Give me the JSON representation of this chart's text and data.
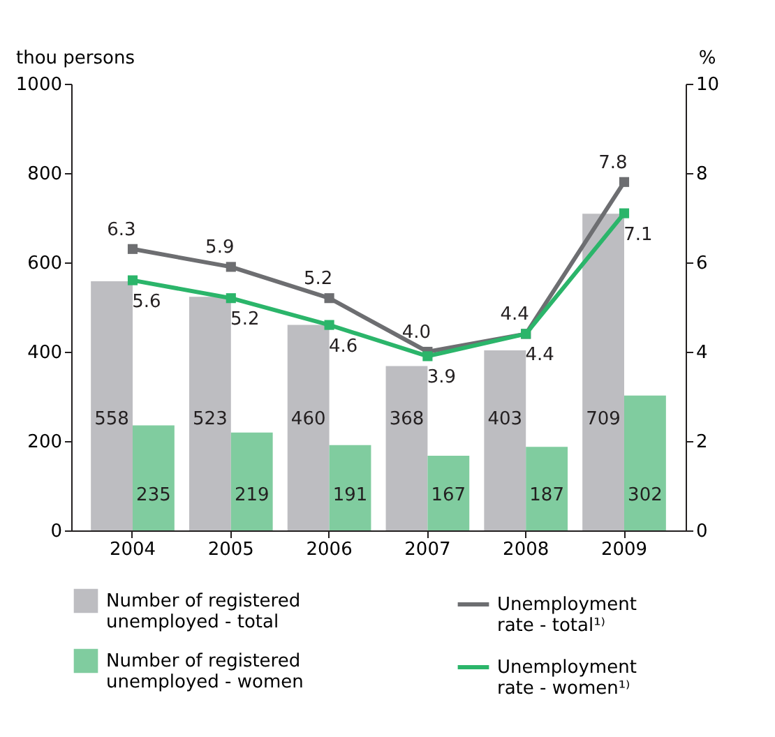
{
  "chart_data": {
    "type": "bar",
    "categories": [
      "2004",
      "2005",
      "2006",
      "2007",
      "2008",
      "2009"
    ],
    "ylabel": "thou persons",
    "y2label": "%",
    "ylim": [
      0,
      1000
    ],
    "yticks": [
      0,
      200,
      400,
      600,
      800,
      1000
    ],
    "y2lim": [
      0,
      10
    ],
    "y2ticks": [
      0,
      2,
      4,
      6,
      8,
      10
    ],
    "series": [
      {
        "name": "Number of registered unemployed - total",
        "color": "#bdbdc1",
        "values": [
          558,
          523,
          460,
          368,
          403,
          709
        ]
      },
      {
        "name": "Number of registered unemployed - women",
        "color": "#80cc9f",
        "values": [
          235,
          219,
          191,
          167,
          187,
          302
        ]
      },
      {
        "name": "Unemployment rate - total¹⁾",
        "type": "line",
        "axis": "y2",
        "color": "#6d6e71",
        "values": [
          6.3,
          5.9,
          5.2,
          4.0,
          4.4,
          7.8
        ],
        "value_labels": [
          "6.3",
          "5.9",
          "5.2",
          "4.0",
          "4.4",
          "7.8"
        ]
      },
      {
        "name": "Unemployment rate - women¹⁾",
        "type": "line",
        "axis": "y2",
        "color": "#2bb56a",
        "values": [
          5.6,
          5.2,
          4.6,
          3.9,
          4.4,
          7.1
        ],
        "value_labels": [
          "5.6",
          "5.2",
          "4.6",
          "3.9",
          "4.4",
          "7.1"
        ]
      }
    ],
    "data_labels": true,
    "grid": false,
    "legend": "bottom",
    "marker": "square",
    "line_style": "solid"
  }
}
